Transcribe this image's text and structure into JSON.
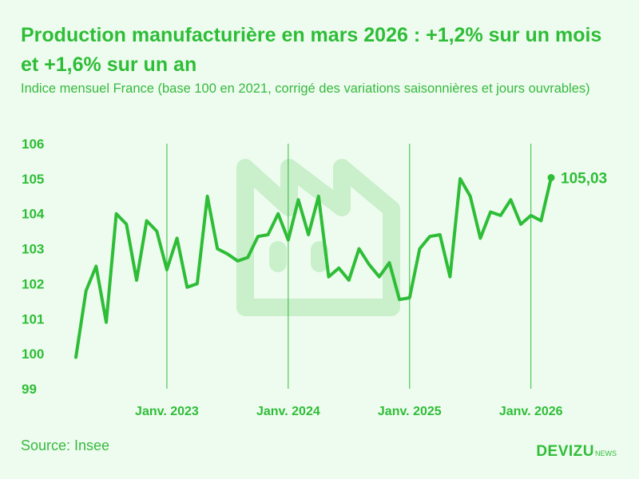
{
  "title": "Production manufacturière en mars 2026 : +1,2% sur un mois et +1,6% sur un an",
  "subtitle": "Indice mensuel France (base 100 en 2021, corrigé des variations saisonnières et jours ouvrables)",
  "source": "Source: Insee",
  "brand": {
    "name": "DEVIZU",
    "suffix": "NEWS"
  },
  "watermark_icon": "factory-icon",
  "colors": {
    "background": "#eefcef",
    "line": "#2ebd37",
    "text": "#2ebd37",
    "gridline": "#2ebd37",
    "watermark": "#c9efcb"
  },
  "chart_data": {
    "type": "line",
    "title": "Production manufacturière en mars 2026 : +1,2% sur un mois et +1,6% sur un an",
    "xlabel": "",
    "ylabel": "",
    "ylim": [
      99,
      106
    ],
    "yticks": [
      "99",
      "100",
      "101",
      "102",
      "103",
      "104",
      "105",
      "106"
    ],
    "xticks": [
      {
        "label": "Janv. 2023",
        "index": 9
      },
      {
        "label": "Janv. 2024",
        "index": 21
      },
      {
        "label": "Janv. 2025",
        "index": 33
      },
      {
        "label": "Janv. 2026",
        "index": 45
      }
    ],
    "x_start": "2022-04",
    "x_end": "2026-03",
    "grid": "vertical lines at each January",
    "end_label": "105,03",
    "series": [
      {
        "values": [
          99.9,
          101.8,
          102.5,
          100.9,
          104.0,
          103.7,
          102.1,
          103.8,
          103.5,
          102.4,
          103.3,
          101.9,
          102.0,
          104.5,
          103.0,
          102.85,
          102.65,
          102.75,
          103.35,
          103.4,
          104.0,
          103.25,
          104.4,
          103.4,
          104.5,
          102.2,
          102.45,
          102.1,
          103.0,
          102.55,
          102.2,
          102.6,
          101.55,
          101.6,
          103.0,
          103.35,
          103.4,
          102.2,
          105.0,
          104.5,
          103.3,
          104.05,
          103.95,
          104.4,
          103.7,
          103.95,
          103.8,
          105.03
        ]
      }
    ]
  }
}
